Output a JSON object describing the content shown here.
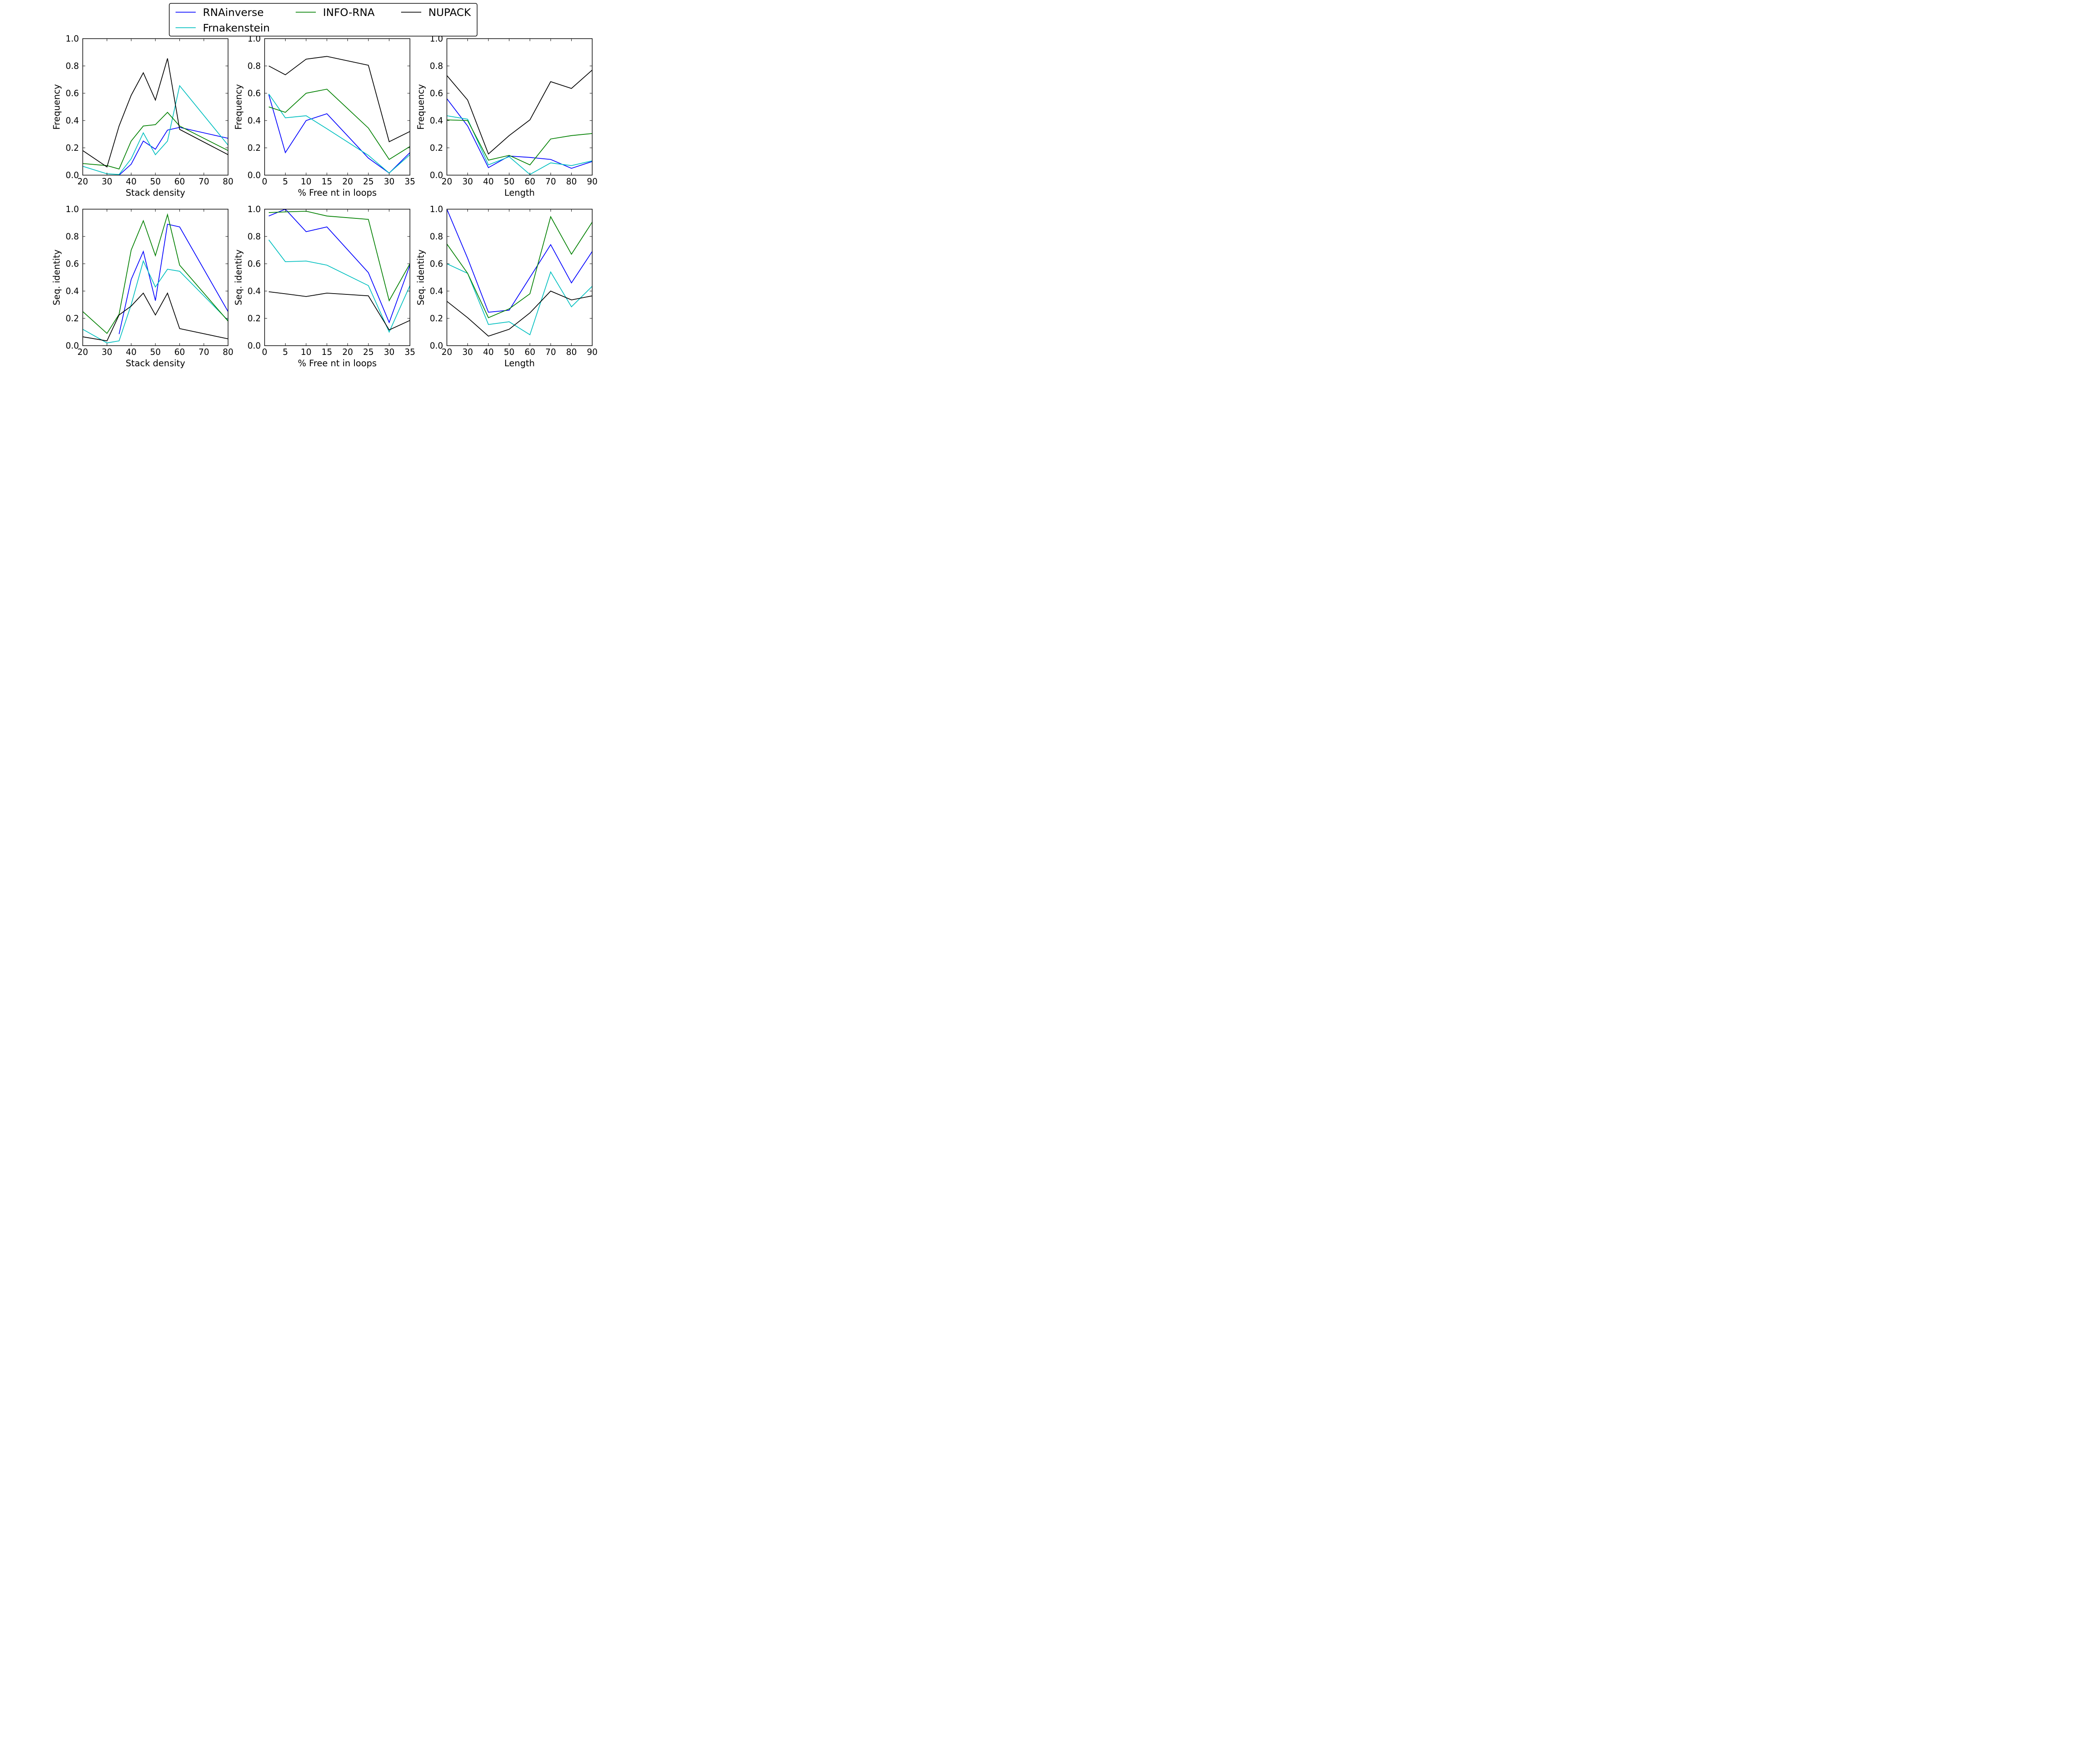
{
  "legend": {
    "entries": [
      {
        "label": "RNAinverse",
        "color": "#0000ff"
      },
      {
        "label": "INFO-RNA",
        "color": "#008000"
      },
      {
        "label": "NUPACK",
        "color": "#000000"
      },
      {
        "label": "Frnakenstein",
        "color": "#00bfbf"
      }
    ]
  },
  "chart_data": [
    {
      "type": "line",
      "xlabel": "Stack density",
      "ylabel": "Frequency",
      "xlim": [
        20,
        80
      ],
      "ylim": [
        0,
        1
      ],
      "xticks": [
        "20",
        "30",
        "40",
        "50",
        "60",
        "70",
        "80"
      ],
      "yticks": [
        "0.0",
        "0.2",
        "0.4",
        "0.6",
        "0.8",
        "1.0"
      ],
      "series": [
        {
          "name": "RNAinverse",
          "color": "#0000ff",
          "x": [
            35,
            40,
            45,
            50,
            55,
            60,
            80
          ],
          "y": [
            0.0,
            0.08,
            0.25,
            0.19,
            0.33,
            0.35,
            0.27
          ]
        },
        {
          "name": "Frnakenstein",
          "color": "#00bfbf",
          "x": [
            20,
            30,
            35,
            40,
            45,
            50,
            55,
            60,
            80
          ],
          "y": [
            0.065,
            0.01,
            0.005,
            0.12,
            0.31,
            0.15,
            0.25,
            0.655,
            0.22
          ]
        },
        {
          "name": "INFO-RNA",
          "color": "#008000",
          "x": [
            20,
            30,
            35,
            40,
            45,
            50,
            55,
            60,
            80
          ],
          "y": [
            0.085,
            0.07,
            0.045,
            0.25,
            0.36,
            0.37,
            0.46,
            0.36,
            0.18
          ]
        },
        {
          "name": "NUPACK",
          "color": "#000000",
          "x": [
            20,
            30,
            35,
            40,
            45,
            50,
            55,
            60,
            80
          ],
          "y": [
            0.18,
            0.06,
            0.36,
            0.585,
            0.75,
            0.55,
            0.855,
            0.335,
            0.15
          ]
        }
      ]
    },
    {
      "type": "line",
      "xlabel": "% Free nt in loops",
      "ylabel": "Frequency",
      "xlim": [
        0,
        35
      ],
      "ylim": [
        0,
        1
      ],
      "xticks": [
        "0",
        "5",
        "10",
        "15",
        "20",
        "25",
        "30",
        "35"
      ],
      "yticks": [
        "0.0",
        "0.2",
        "0.4",
        "0.6",
        "0.8",
        "1.0"
      ],
      "series": [
        {
          "name": "RNAinverse",
          "color": "#0000ff",
          "x": [
            1,
            5,
            10,
            15,
            25,
            30,
            35
          ],
          "y": [
            0.59,
            0.165,
            0.4,
            0.45,
            0.125,
            0.015,
            0.165
          ]
        },
        {
          "name": "Frnakenstein",
          "color": "#00bfbf",
          "x": [
            1,
            5,
            10,
            15,
            25,
            30,
            35
          ],
          "y": [
            0.595,
            0.42,
            0.435,
            0.34,
            0.145,
            0.015,
            0.15
          ]
        },
        {
          "name": "INFO-RNA",
          "color": "#008000",
          "x": [
            1,
            5,
            10,
            15,
            25,
            30,
            35
          ],
          "y": [
            0.5,
            0.46,
            0.6,
            0.63,
            0.345,
            0.115,
            0.21
          ]
        },
        {
          "name": "NUPACK",
          "color": "#000000",
          "x": [
            1,
            5,
            10,
            15,
            25,
            30,
            35
          ],
          "y": [
            0.8,
            0.735,
            0.85,
            0.87,
            0.805,
            0.245,
            0.32
          ]
        }
      ]
    },
    {
      "type": "line",
      "xlabel": "Length",
      "ylabel": "Frequency",
      "xlim": [
        20,
        90
      ],
      "ylim": [
        0,
        1
      ],
      "xticks": [
        "20",
        "30",
        "40",
        "50",
        "60",
        "70",
        "80",
        "90"
      ],
      "yticks": [
        "0.0",
        "0.2",
        "0.4",
        "0.6",
        "0.8",
        "1.0"
      ],
      "series": [
        {
          "name": "RNAinverse",
          "color": "#0000ff",
          "x": [
            20,
            30,
            40,
            50,
            60,
            70,
            80,
            90
          ],
          "y": [
            0.56,
            0.36,
            0.055,
            0.14,
            0.13,
            0.115,
            0.05,
            0.1
          ]
        },
        {
          "name": "Frnakenstein",
          "color": "#00bfbf",
          "x": [
            20,
            30,
            40,
            50,
            60,
            70,
            80,
            90
          ],
          "y": [
            0.435,
            0.41,
            0.075,
            0.135,
            0.005,
            0.09,
            0.07,
            0.105
          ]
        },
        {
          "name": "INFO-RNA",
          "color": "#008000",
          "x": [
            20,
            30,
            40,
            50,
            60,
            70,
            80,
            90
          ],
          "y": [
            0.405,
            0.4,
            0.11,
            0.145,
            0.075,
            0.265,
            0.29,
            0.305
          ]
        },
        {
          "name": "NUPACK",
          "color": "#000000",
          "x": [
            20,
            30,
            40,
            50,
            60,
            70,
            80,
            90
          ],
          "y": [
            0.73,
            0.55,
            0.155,
            0.29,
            0.405,
            0.685,
            0.635,
            0.77
          ]
        }
      ]
    },
    {
      "type": "line",
      "xlabel": "Stack density",
      "ylabel": "Seq. identity",
      "xlim": [
        20,
        80
      ],
      "ylim": [
        0,
        1
      ],
      "xticks": [
        "20",
        "30",
        "40",
        "50",
        "60",
        "70",
        "80"
      ],
      "yticks": [
        "0.0",
        "0.2",
        "0.4",
        "0.6",
        "0.8",
        "1.0"
      ],
      "series": [
        {
          "name": "RNAinverse",
          "color": "#0000ff",
          "x": [
            35,
            40,
            45,
            50,
            55,
            60,
            80
          ],
          "y": [
            0.085,
            0.485,
            0.69,
            0.33,
            0.89,
            0.87,
            0.25
          ]
        },
        {
          "name": "Frnakenstein",
          "color": "#00bfbf",
          "x": [
            20,
            30,
            35,
            40,
            45,
            50,
            55,
            60,
            80
          ],
          "y": [
            0.12,
            0.02,
            0.035,
            0.3,
            0.62,
            0.43,
            0.56,
            0.545,
            0.185
          ]
        },
        {
          "name": "INFO-RNA",
          "color": "#008000",
          "x": [
            20,
            30,
            35,
            40,
            45,
            50,
            55,
            60,
            80
          ],
          "y": [
            0.25,
            0.09,
            0.23,
            0.7,
            0.915,
            0.66,
            0.96,
            0.59,
            0.18
          ]
        },
        {
          "name": "NUPACK",
          "color": "#000000",
          "x": [
            20,
            30,
            35,
            40,
            45,
            50,
            55,
            60,
            80
          ],
          "y": [
            0.065,
            0.035,
            0.225,
            0.29,
            0.385,
            0.225,
            0.385,
            0.125,
            0.05
          ]
        }
      ]
    },
    {
      "type": "line",
      "xlabel": "% Free nt in loops",
      "ylabel": "Seq. identity",
      "xlim": [
        0,
        35
      ],
      "ylim": [
        0,
        1
      ],
      "xticks": [
        "0",
        "5",
        "10",
        "15",
        "20",
        "25",
        "30",
        "35"
      ],
      "yticks": [
        "0.0",
        "0.2",
        "0.4",
        "0.6",
        "0.8",
        "1.0"
      ],
      "series": [
        {
          "name": "RNAinverse",
          "color": "#0000ff",
          "x": [
            1,
            5,
            10,
            15,
            25,
            30,
            35
          ],
          "y": [
            0.95,
            1.0,
            0.835,
            0.87,
            0.535,
            0.17,
            0.59
          ]
        },
        {
          "name": "Frnakenstein",
          "color": "#00bfbf",
          "x": [
            1,
            5,
            10,
            15,
            25,
            30,
            35
          ],
          "y": [
            0.775,
            0.615,
            0.62,
            0.59,
            0.44,
            0.1,
            0.44
          ]
        },
        {
          "name": "INFO-RNA",
          "color": "#008000",
          "x": [
            1,
            5,
            10,
            15,
            25,
            30,
            35
          ],
          "y": [
            0.975,
            0.98,
            0.985,
            0.95,
            0.925,
            0.33,
            0.6
          ]
        },
        {
          "name": "NUPACK",
          "color": "#000000",
          "x": [
            1,
            5,
            10,
            15,
            25,
            30,
            35
          ],
          "y": [
            0.395,
            0.38,
            0.36,
            0.385,
            0.365,
            0.115,
            0.185
          ]
        }
      ]
    },
    {
      "type": "line",
      "xlabel": "Length",
      "ylabel": "Seq. identity",
      "xlim": [
        20,
        90
      ],
      "ylim": [
        0,
        1
      ],
      "xticks": [
        "20",
        "30",
        "40",
        "50",
        "60",
        "70",
        "80",
        "90"
      ],
      "yticks": [
        "0.0",
        "0.2",
        "0.4",
        "0.6",
        "0.8",
        "1.0"
      ],
      "series": [
        {
          "name": "RNAinverse",
          "color": "#0000ff",
          "x": [
            20,
            30,
            40,
            50,
            60,
            70,
            80,
            90
          ],
          "y": [
            1.0,
            0.64,
            0.245,
            0.26,
            0.5,
            0.74,
            0.46,
            0.69
          ]
        },
        {
          "name": "Frnakenstein",
          "color": "#00bfbf",
          "x": [
            20,
            30,
            40,
            50,
            60,
            70,
            80,
            90
          ],
          "y": [
            0.6,
            0.53,
            0.155,
            0.175,
            0.08,
            0.54,
            0.285,
            0.435
          ]
        },
        {
          "name": "INFO-RNA",
          "color": "#008000",
          "x": [
            20,
            30,
            40,
            50,
            60,
            70,
            80,
            90
          ],
          "y": [
            0.745,
            0.53,
            0.205,
            0.27,
            0.38,
            0.945,
            0.67,
            0.905
          ]
        },
        {
          "name": "NUPACK",
          "color": "#000000",
          "x": [
            20,
            30,
            40,
            50,
            60,
            70,
            80,
            90
          ],
          "y": [
            0.325,
            0.205,
            0.07,
            0.12,
            0.24,
            0.4,
            0.335,
            0.365
          ]
        }
      ]
    }
  ]
}
